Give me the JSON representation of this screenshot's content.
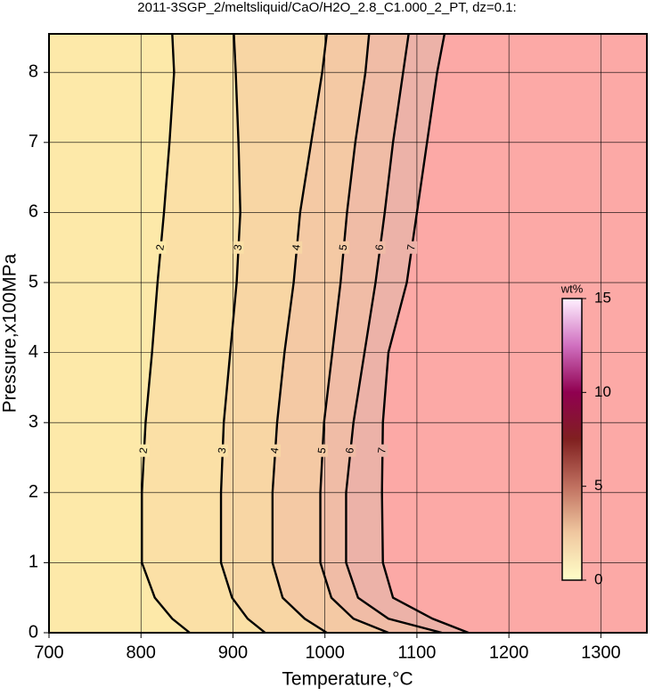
{
  "chart_data": {
    "type": "contour",
    "title": "2011-3SGP_2/meltsliquid/CaO/H2O_2.8_C1.000_2_PT, dz=0.1:",
    "x_label": "Temperature,°C",
    "y_label": "Pressure,x100MPa",
    "xlim": [
      700,
      1350
    ],
    "ylim": [
      0,
      8.55
    ],
    "xticks": [
      700,
      800,
      900,
      1000,
      1100,
      1200,
      1300
    ],
    "yticks": [
      0,
      1,
      2,
      3,
      4,
      5,
      6,
      7,
      8
    ],
    "grid": true,
    "background": "#fca9a6",
    "y": [
      0,
      0.2,
      0.5,
      1,
      2,
      3,
      4,
      5,
      6,
      7,
      8,
      8.55
    ],
    "series": [
      {
        "name": "2",
        "color": "#fde9a9",
        "values": [
          853,
          834,
          815,
          801,
          801,
          805,
          812,
          818,
          825,
          831,
          836,
          834
        ]
      },
      {
        "name": "3",
        "color": "#fbe0a6",
        "values": [
          935,
          916,
          899,
          887,
          887,
          890,
          897,
          904,
          908,
          906,
          903,
          901
        ]
      },
      {
        "name": "4",
        "color": "#f8d6a4",
        "values": [
          1002,
          978,
          954,
          943,
          943,
          948,
          956,
          966,
          973,
          985,
          997,
          1002
        ]
      },
      {
        "name": "5",
        "color": "#f4c9a4",
        "values": [
          1069,
          1031,
          1007,
          995,
          995,
          999,
          1008,
          1017,
          1024,
          1033,
          1044,
          1048
        ]
      },
      {
        "name": "6",
        "color": "#f0bca6",
        "values": [
          1127,
          1069,
          1036,
          1023,
          1023,
          1031,
          1043,
          1055,
          1065,
          1074,
          1085,
          1091
        ]
      },
      {
        "name": "7",
        "color": "#ecb2a8",
        "values": [
          1156,
          1117,
          1074,
          1063,
          1062,
          1063,
          1069,
          1089,
          1100,
          1111,
          1122,
          1130
        ]
      }
    ],
    "colorbar": {
      "label": "wt%",
      "lim": [
        0,
        15
      ],
      "ticks": [
        0,
        5,
        10,
        15
      ],
      "colors": [
        "#ffffc8",
        "#f0c8a0",
        "#c07060",
        "#802020",
        "#900050",
        "#d070c0",
        "#fff0ff"
      ]
    }
  }
}
